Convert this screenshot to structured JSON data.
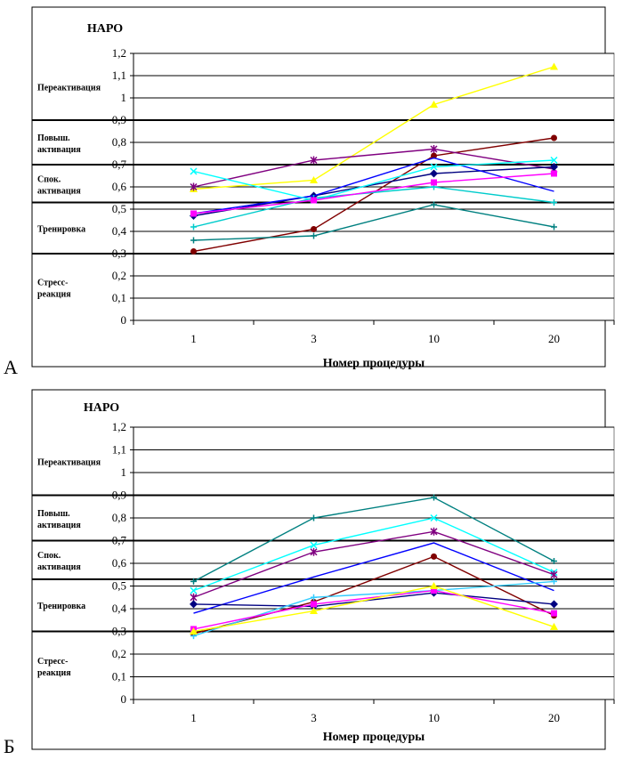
{
  "panels": [
    {
      "letter": "А"
    },
    {
      "letter": "Б"
    }
  ],
  "chart_data": [
    {
      "type": "line",
      "ylabel": "НАРО",
      "xlabel": "Номер процедуры",
      "categories": [
        "1",
        "3",
        "10",
        "20"
      ],
      "ylim": [
        0,
        1.2
      ],
      "yticks": [
        "0",
        "0,1",
        "0,2",
        "0,3",
        "0,4",
        "0,5",
        "0,6",
        "0,7",
        "0,8",
        "0,9",
        "1",
        "1,1",
        "1,2"
      ],
      "zones": [
        {
          "label": "Переактивация",
          "y_bottom": 0.9,
          "y_top": 1.2
        },
        {
          "label": "Повыш. активация",
          "y_bottom": 0.7,
          "y_top": 0.9
        },
        {
          "label": "Спок. активация",
          "y_bottom": 0.53,
          "y_top": 0.7
        },
        {
          "label": "Тренировка",
          "y_bottom": 0.3,
          "y_top": 0.53
        },
        {
          "label": "Стресс-реакция",
          "y_bottom": 0,
          "y_top": 0.3
        }
      ],
      "zone_boundaries": [
        0.3,
        0.53,
        0.7,
        0.9
      ],
      "grid": "horizontal",
      "series": [
        {
          "color": "#FFFF00",
          "marker": "triangle",
          "values": [
            0.59,
            0.63,
            0.97,
            1.14
          ]
        },
        {
          "color": "#800000",
          "marker": "circle",
          "values": [
            0.31,
            0.41,
            0.74,
            0.82
          ]
        },
        {
          "color": "#800080",
          "marker": "star",
          "values": [
            0.6,
            0.72,
            0.77,
            0.68
          ]
        },
        {
          "color": "#000080",
          "marker": "diamond",
          "values": [
            0.47,
            0.56,
            0.66,
            0.69
          ]
        },
        {
          "color": "#0000FF",
          "marker": "none",
          "values": [
            0.48,
            0.56,
            0.73,
            0.58
          ]
        },
        {
          "color": "#00FFFF",
          "marker": "x",
          "values": [
            0.67,
            0.54,
            0.69,
            0.72
          ]
        },
        {
          "color": "#00CCCC",
          "marker": "cross",
          "values": [
            0.42,
            0.55,
            0.6,
            0.53
          ]
        },
        {
          "color": "#FF00FF",
          "marker": "square",
          "values": [
            0.48,
            0.54,
            0.62,
            0.66
          ]
        },
        {
          "color": "#008080",
          "marker": "plus",
          "values": [
            0.36,
            0.38,
            0.52,
            0.42
          ]
        }
      ]
    },
    {
      "type": "line",
      "ylabel": "НАРО",
      "xlabel": "Номер процедуры",
      "categories": [
        "1",
        "3",
        "10",
        "20"
      ],
      "ylim": [
        0,
        1.2
      ],
      "yticks": [
        "0",
        "0,1",
        "0,2",
        "0,3",
        "0,4",
        "0,5",
        "0,6",
        "0,7",
        "0,8",
        "0,9",
        "1",
        "1,1",
        "1,2"
      ],
      "zones": [
        {
          "label": "Переактивация",
          "y_bottom": 0.9,
          "y_top": 1.2
        },
        {
          "label": "Повыш. активация",
          "y_bottom": 0.7,
          "y_top": 0.9
        },
        {
          "label": "Спок. активация",
          "y_bottom": 0.53,
          "y_top": 0.7
        },
        {
          "label": "Тренировка",
          "y_bottom": 0.3,
          "y_top": 0.53
        },
        {
          "label": "Стресс-реакция",
          "y_bottom": 0,
          "y_top": 0.3
        }
      ],
      "zone_boundaries": [
        0.3,
        0.53,
        0.7,
        0.9
      ],
      "grid": "horizontal",
      "series": [
        {
          "color": "#008080",
          "marker": "plus",
          "values": [
            0.52,
            0.8,
            0.89,
            0.61
          ]
        },
        {
          "color": "#00FFFF",
          "marker": "x",
          "values": [
            0.48,
            0.68,
            0.8,
            0.56
          ]
        },
        {
          "color": "#800080",
          "marker": "star",
          "values": [
            0.45,
            0.65,
            0.74,
            0.55
          ]
        },
        {
          "color": "#0000FF",
          "marker": "none",
          "values": [
            0.38,
            0.54,
            0.69,
            0.48
          ]
        },
        {
          "color": "#800000",
          "marker": "circle",
          "values": [
            0.29,
            0.43,
            0.63,
            0.37
          ]
        },
        {
          "color": "#000080",
          "marker": "diamond",
          "values": [
            0.42,
            0.41,
            0.47,
            0.42
          ]
        },
        {
          "color": "#33CCFF",
          "marker": "cross",
          "values": [
            0.28,
            0.45,
            0.48,
            0.52
          ]
        },
        {
          "color": "#FF00FF",
          "marker": "square",
          "values": [
            0.31,
            0.42,
            0.48,
            0.38
          ]
        },
        {
          "color": "#FFFF00",
          "marker": "triangle",
          "values": [
            0.3,
            0.39,
            0.5,
            0.32
          ]
        }
      ]
    }
  ]
}
